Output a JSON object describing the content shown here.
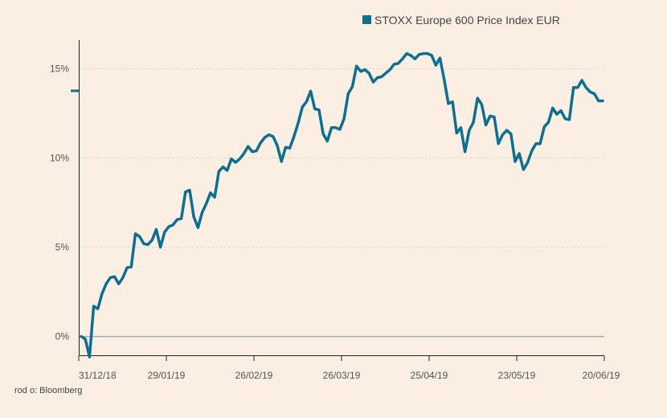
{
  "chart_data": {
    "type": "line",
    "title": "",
    "xlabel": "",
    "ylabel": "",
    "ylim": [
      -1.1,
      16.6
    ],
    "grid": true,
    "legend_position": "top-right",
    "line_color": "#0f6f91",
    "zero_line_color": "#a9a9a9",
    "y_ticks": [
      {
        "value": 0,
        "label": "0%"
      },
      {
        "value": 5,
        "label": "5%"
      },
      {
        "value": 10,
        "label": "10%"
      },
      {
        "value": 15,
        "label": "15%"
      }
    ],
    "x_ticks": [
      "31/12/18",
      "29/01/19",
      "26/02/19",
      "26/03/19",
      "25/04/19",
      "23/05/19",
      "20/06/19"
    ],
    "series": [
      {
        "name": "STOXX Europe 600 Price Index EUR",
        "values": [
          0.0,
          -0.15,
          -1.15,
          1.7,
          1.55,
          2.4,
          2.95,
          3.3,
          3.35,
          2.95,
          3.3,
          3.85,
          3.9,
          5.75,
          5.6,
          5.2,
          5.15,
          5.4,
          6.0,
          5.0,
          5.85,
          6.15,
          6.25,
          6.55,
          6.6,
          8.1,
          8.2,
          6.7,
          6.1,
          6.95,
          7.45,
          8.05,
          7.8,
          9.25,
          9.5,
          9.3,
          9.95,
          9.75,
          9.95,
          10.25,
          10.65,
          10.35,
          10.4,
          10.85,
          11.15,
          11.3,
          11.2,
          10.7,
          9.8,
          10.6,
          10.55,
          11.2,
          11.95,
          12.85,
          13.15,
          13.75,
          12.75,
          12.7,
          11.35,
          10.95,
          11.7,
          11.7,
          11.6,
          12.2,
          13.6,
          14.0,
          15.15,
          14.85,
          14.95,
          14.75,
          14.25,
          14.5,
          14.55,
          14.75,
          14.95,
          15.25,
          15.3,
          15.55,
          15.85,
          15.75,
          15.55,
          15.8,
          15.85,
          15.85,
          15.75,
          15.2,
          15.6,
          14.4,
          13.05,
          13.15,
          11.4,
          11.7,
          10.35,
          11.55,
          12.0,
          13.35,
          13.0,
          11.85,
          12.35,
          12.3,
          10.8,
          11.3,
          11.55,
          11.35,
          9.8,
          10.25,
          9.35,
          9.75,
          10.4,
          10.8,
          10.8,
          11.75,
          12.0,
          12.8,
          12.45,
          12.65,
          12.2,
          12.15,
          13.95,
          13.95,
          14.35,
          13.95,
          13.7,
          13.6,
          13.2,
          13.2
        ]
      }
    ]
  },
  "source": "rod o: Bloomberg"
}
